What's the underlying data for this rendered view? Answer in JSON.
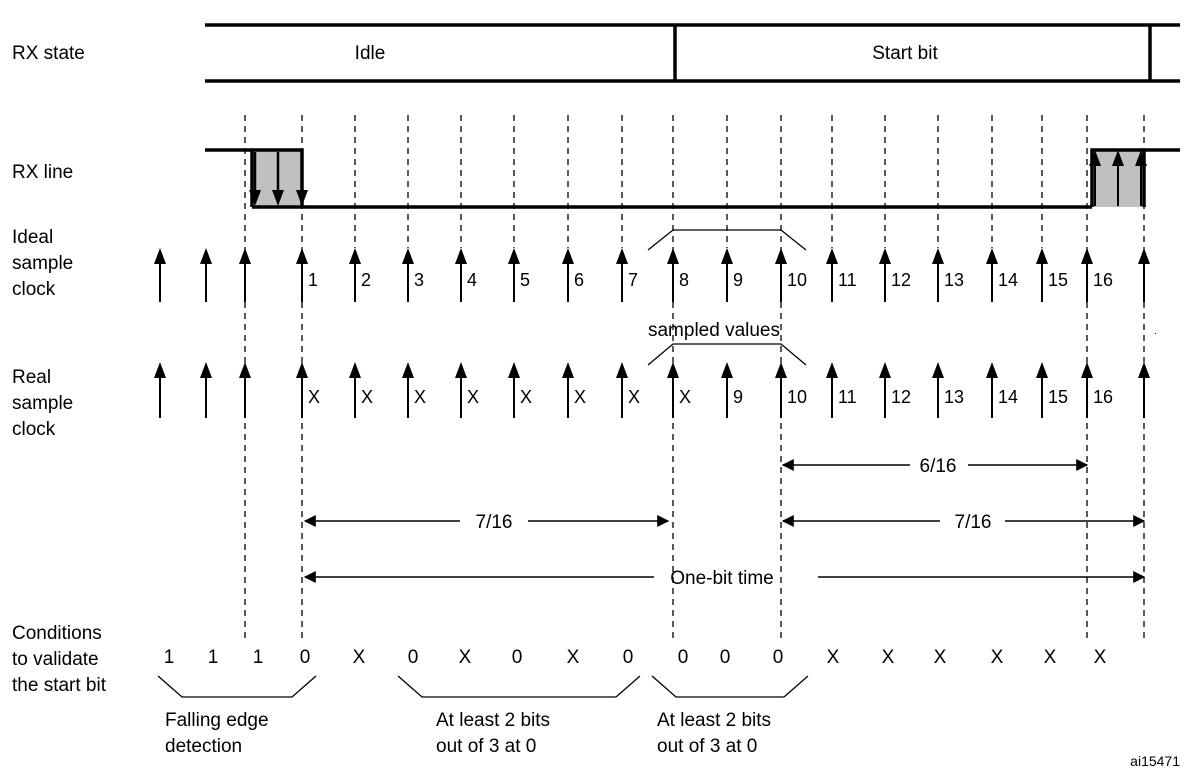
{
  "row_labels": {
    "rx_state": "RX state",
    "rx_line": "RX line",
    "ideal_clock": [
      "Ideal",
      "sample",
      "clock"
    ],
    "real_clock": [
      "Real",
      "sample",
      "clock"
    ],
    "conditions": [
      "Conditions",
      "to validate",
      "the start bit"
    ]
  },
  "rx_state": {
    "idle": "Idle",
    "start_bit": "Start bit"
  },
  "ideal_tick_labels": [
    "1",
    "2",
    "3",
    "4",
    "5",
    "6",
    "7",
    "8",
    "9",
    "10",
    "11",
    "12",
    "13",
    "14",
    "15",
    "16"
  ],
  "real_tick_labels": [
    "X",
    "X",
    "X",
    "X",
    "X",
    "X",
    "X",
    "X",
    "9",
    "10",
    "11",
    "12",
    "13",
    "14",
    "15",
    "16"
  ],
  "sampled_values_label": "sampled values",
  "measures": {
    "six_sixteenths": "6/16",
    "seven_sixteenths_left": "7/16",
    "seven_sixteenths_right": "7/16",
    "one_bit_time": "One-bit time"
  },
  "condition_values": [
    "1",
    "1",
    "1",
    "0",
    "X",
    "0",
    "X",
    "0",
    "X",
    "0",
    "0",
    "0",
    "0",
    "X",
    "X",
    "X",
    "X",
    "X",
    "X"
  ],
  "brace_captions": {
    "falling_edge": [
      "Falling edge",
      "detection"
    ],
    "at_least_first": [
      "At least 2 bits",
      "out of 3 at 0"
    ],
    "at_least_second": [
      "At least 2 bits",
      "out of 3 at 0"
    ]
  },
  "figure_id": "ai15471",
  "colors": {
    "line": "#000000",
    "transition_fill": "#c0c0c0",
    "background": "#ffffff"
  }
}
